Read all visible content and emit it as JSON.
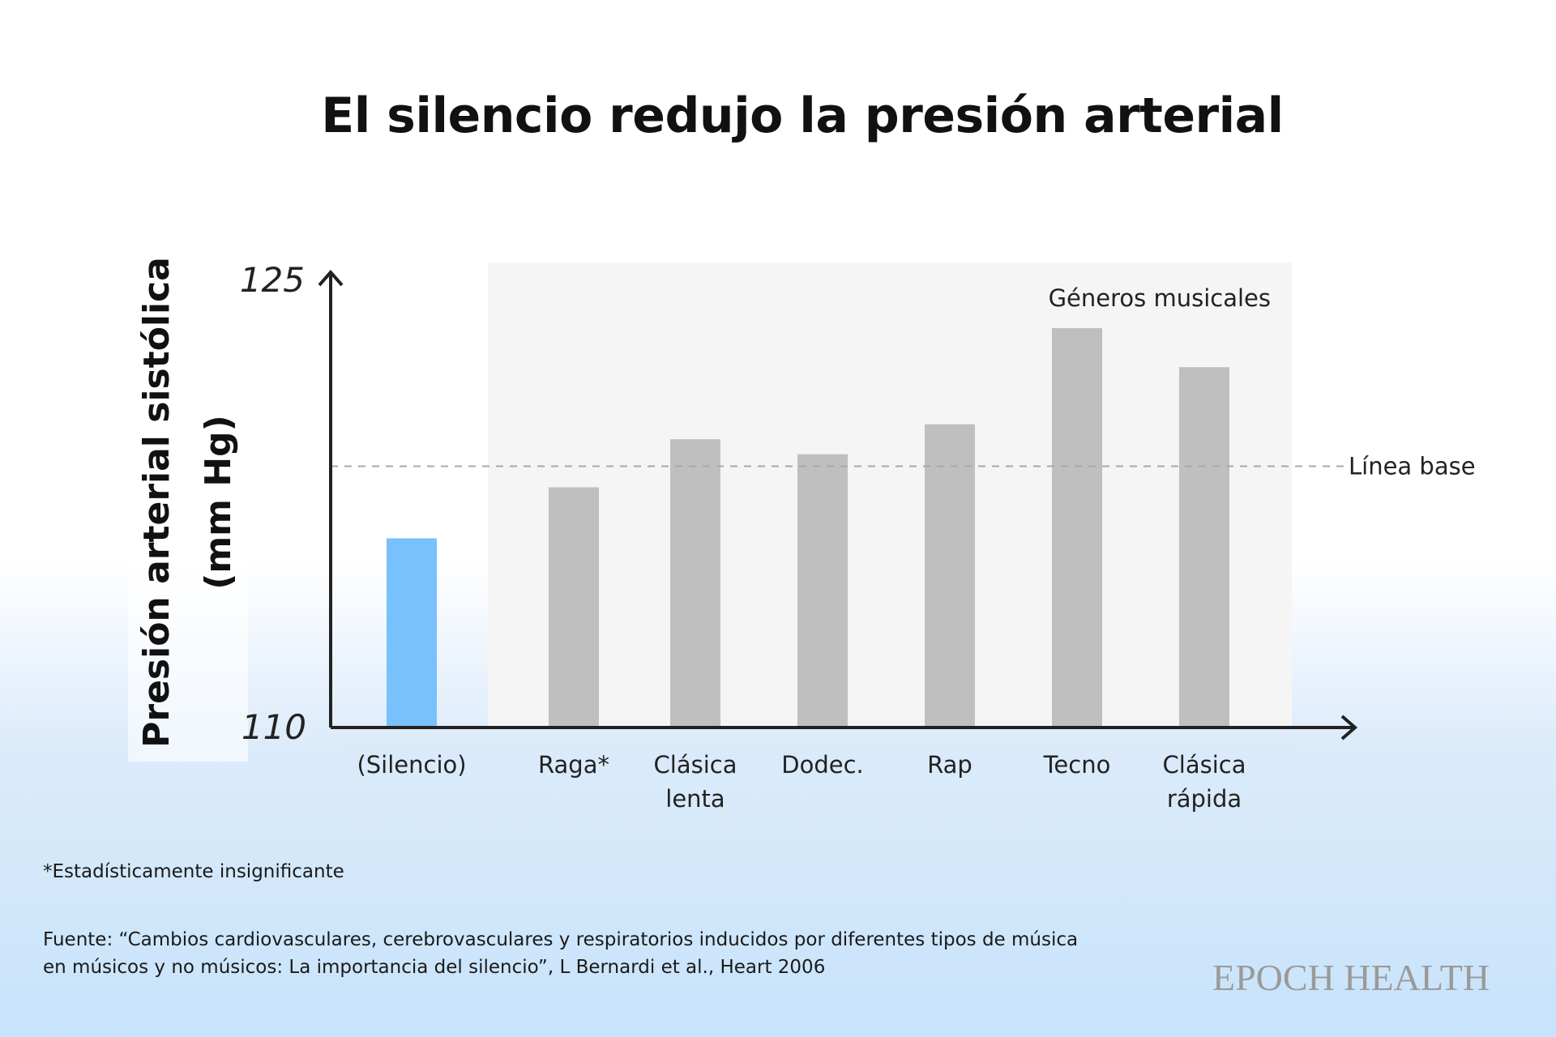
{
  "title": "El silencio redujo la presión arterial",
  "chart_data": {
    "type": "bar",
    "title": "El silencio redujo la presión arterial",
    "ylabel_lines": [
      "Presión arterial sistólica",
      "(mm Hg)"
    ],
    "ylim": [
      110,
      125
    ],
    "yticks": [
      "125",
      "110"
    ],
    "categories": [
      {
        "label": [
          "(Silencio)"
        ],
        "value": 116.3,
        "color": "#78c1fc"
      },
      {
        "label": [
          "Raga*"
        ],
        "value": 118.0,
        "color": "#bfbfbf"
      },
      {
        "label": [
          "Clásica",
          "lenta"
        ],
        "value": 119.6,
        "color": "#bfbfbf"
      },
      {
        "label": [
          "Dodec."
        ],
        "value": 119.1,
        "color": "#bfbfbf"
      },
      {
        "label": [
          "Rap"
        ],
        "value": 120.1,
        "color": "#bfbfbf"
      },
      {
        "label": [
          "Tecno"
        ],
        "value": 123.3,
        "color": "#bfbfbf"
      },
      {
        "label": [
          "Clásica",
          "rápida"
        ],
        "value": 122.0,
        "color": "#bfbfbf"
      }
    ],
    "baseline": {
      "label": "Línea base",
      "value": 118.7
    },
    "group_label": "Géneros musicales",
    "grid": false
  },
  "footnote": "*Estadísticamente insignificante",
  "source_lines": [
    "Fuente: “Cambios cardiovasculares, cerebrovasculares y respiratorios inducidos por diferentes tipos de música",
    "en músicos y no músicos: La importancia del silencio”, L Bernardi et al., Heart 2006"
  ],
  "brand": "EPOCH HEALTH",
  "colors": {
    "silence": "#78c1fc",
    "genre": "#bfbfbf",
    "group_bg": "#f5f5f5",
    "axis": "#222222"
  }
}
